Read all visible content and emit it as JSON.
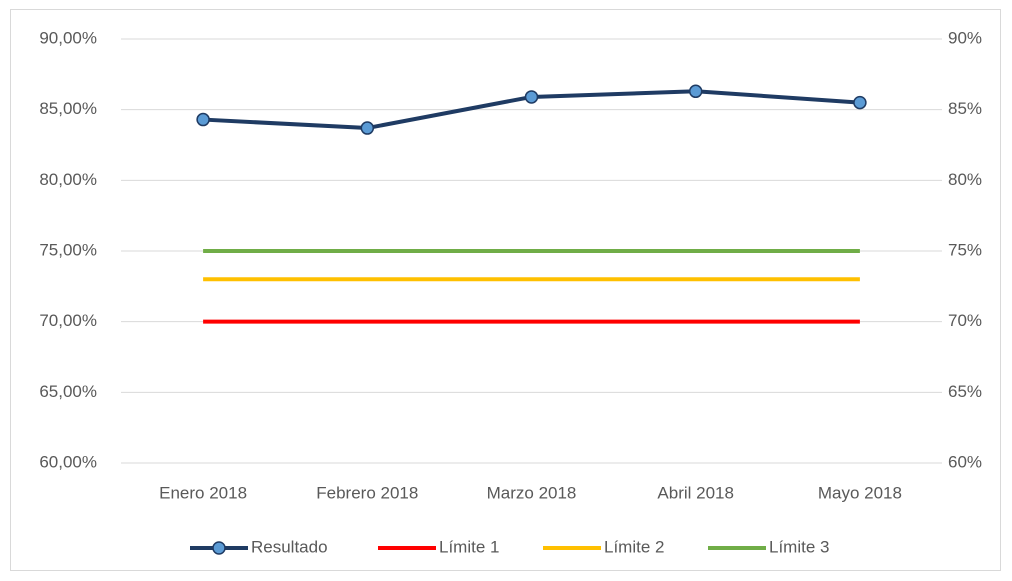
{
  "chart_data": {
    "type": "line",
    "categories": [
      "Enero 2018",
      "Febrero 2018",
      "Marzo 2018",
      "Abril 2018",
      "Mayo 2018"
    ],
    "series": [
      {
        "name": "Resultado",
        "color": "#1f3b63",
        "marker_color": "#5b9bd5",
        "values": [
          84.3,
          83.7,
          85.9,
          86.3,
          85.5
        ]
      },
      {
        "name": "Límite 1",
        "color": "#ff0000",
        "values": [
          70,
          70,
          70,
          70,
          70
        ]
      },
      {
        "name": "Límite 2",
        "color": "#ffc000",
        "values": [
          73,
          73,
          73,
          73,
          73
        ]
      },
      {
        "name": "Límite 3",
        "color": "#70ad47",
        "values": [
          75,
          75,
          75,
          75,
          75
        ]
      }
    ],
    "ylim": [
      60,
      90
    ],
    "yticks": [
      {
        "value": 60,
        "label": "60,00%"
      },
      {
        "value": 65,
        "label": "65,00%"
      },
      {
        "value": 70,
        "label": "70,00%"
      },
      {
        "value": 75,
        "label": "75,00%"
      },
      {
        "value": 80,
        "label": "80,00%"
      },
      {
        "value": 85,
        "label": "85,00%"
      },
      {
        "value": 90,
        "label": "90,00%"
      }
    ],
    "y2lim": [
      60,
      90
    ],
    "y2ticks": [
      {
        "value": 60,
        "label": "60%"
      },
      {
        "value": 65,
        "label": "65%"
      },
      {
        "value": 70,
        "label": "70%"
      },
      {
        "value": 75,
        "label": "75%"
      },
      {
        "value": 80,
        "label": "80%"
      },
      {
        "value": 85,
        "label": "85%"
      },
      {
        "value": 90,
        "label": "90%"
      }
    ],
    "grid": true,
    "legend": "bottom"
  }
}
